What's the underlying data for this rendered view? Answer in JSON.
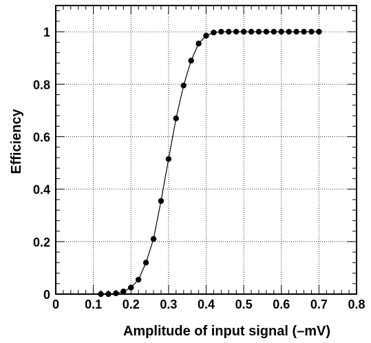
{
  "chart_data": {
    "type": "scatter",
    "xlabel": "Amplitude of input signal (–mV)",
    "ylabel": "Efficiency",
    "xlim": [
      0,
      0.8
    ],
    "ylim": [
      0,
      1.1
    ],
    "x_ticks": [
      "0",
      "0.1",
      "0.2",
      "0.3",
      "0.4",
      "0.5",
      "0.6",
      "0.7",
      "0.8"
    ],
    "y_ticks": [
      "0",
      "0.2",
      "0.4",
      "0.6",
      "0.8",
      "1"
    ],
    "grid": true,
    "series": [
      {
        "x": [
          0.12,
          0.14,
          0.16,
          0.18,
          0.2,
          0.22,
          0.24,
          0.26,
          0.28,
          0.3,
          0.32,
          0.34,
          0.36,
          0.38,
          0.4,
          0.42,
          0.44,
          0.46,
          0.48,
          0.5,
          0.52,
          0.54,
          0.56,
          0.58,
          0.6,
          0.62,
          0.64,
          0.66,
          0.68,
          0.7
        ],
        "y": [
          0.0,
          0.0,
          0.003,
          0.01,
          0.025,
          0.055,
          0.12,
          0.21,
          0.355,
          0.515,
          0.67,
          0.795,
          0.89,
          0.955,
          0.985,
          0.997,
          1.0,
          1.0,
          1.0,
          1.0,
          1.0,
          1.0,
          1.0,
          1.0,
          1.0,
          1.0,
          1.0,
          1.0,
          1.0,
          1.0
        ],
        "color": "#000000"
      }
    ]
  }
}
